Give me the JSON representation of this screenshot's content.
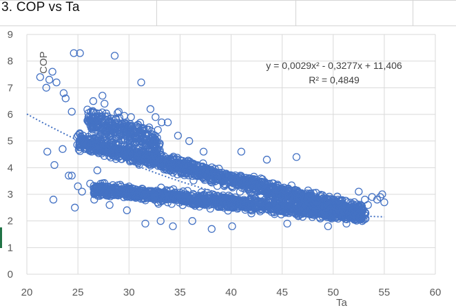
{
  "sheet": {
    "title": "3. COP vs Ta",
    "selection_color": "#217346",
    "gridline_color": "#d4d4d4"
  },
  "chart_data": {
    "type": "scatter",
    "title": "",
    "xlabel": "Ta",
    "ylabel": "COP",
    "xlim": [
      20,
      60
    ],
    "ylim": [
      0,
      9
    ],
    "x_ticks": [
      "20",
      "25",
      "30",
      "35",
      "40",
      "45",
      "50",
      "55",
      "60"
    ],
    "y_ticks": [
      "0",
      "1",
      "2",
      "3",
      "4",
      "5",
      "6",
      "7",
      "8",
      "9"
    ],
    "grid": "horizontal and vertical",
    "marker": "open-circle",
    "marker_color": "#4472c4",
    "trendline": {
      "type": "polynomial",
      "order": 2,
      "a": 0.0029,
      "b": -0.3277,
      "c": 11.406,
      "x_range": [
        20,
        55
      ],
      "color": "#4472c4",
      "style": "dotted",
      "equation": "y = 0,0029x² - 0,3277x + 11,406",
      "r_squared": "R² = 0,4849"
    },
    "series": [
      {
        "marker": "open-circle",
        "approx_point_count": 3000,
        "points": [
          [
            21.3,
            7.4
          ],
          [
            21.9,
            7.0
          ],
          [
            22.2,
            7.3
          ],
          [
            22.5,
            7.6
          ],
          [
            22.9,
            7.2
          ],
          [
            23.6,
            6.8
          ],
          [
            23.8,
            6.6
          ],
          [
            24.4,
            6.1
          ],
          [
            24.6,
            8.3
          ],
          [
            25.2,
            8.3
          ],
          [
            28.6,
            8.2
          ],
          [
            31.2,
            7.2
          ],
          [
            22.0,
            4.6
          ],
          [
            22.7,
            4.1
          ],
          [
            23.5,
            4.7
          ],
          [
            24.1,
            3.7
          ],
          [
            24.4,
            3.7
          ],
          [
            25.0,
            3.3
          ],
          [
            22.6,
            2.8
          ],
          [
            24.7,
            2.5
          ],
          [
            26.9,
            3.9
          ],
          [
            28.4,
            3.0
          ],
          [
            27.4,
            6.7
          ],
          [
            27.6,
            6.4
          ],
          [
            26.5,
            6.5
          ],
          [
            32.1,
            6.2
          ],
          [
            33.2,
            5.7
          ],
          [
            34.8,
            5.2
          ],
          [
            29.0,
            6.1
          ],
          [
            30.2,
            5.9
          ],
          [
            46.4,
            4.4
          ],
          [
            52.7,
            2.5
          ],
          [
            53.4,
            2.6
          ],
          [
            53.8,
            2.9
          ],
          [
            54.3,
            2.8
          ],
          [
            54.8,
            3.0
          ],
          [
            55.0,
            2.7
          ],
          [
            54.6,
            2.9
          ],
          [
            53.1,
            2.8
          ],
          [
            52.5,
            3.1
          ],
          [
            43.5,
            4.3
          ],
          [
            41.0,
            4.6
          ],
          [
            37.3,
            4.6
          ],
          [
            35.9,
            5.0
          ],
          [
            33.8,
            5.7
          ],
          [
            32.6,
            5.9
          ],
          [
            31.6,
            1.9
          ],
          [
            34.3,
            1.8
          ],
          [
            38.1,
            1.7
          ],
          [
            40.1,
            1.8
          ],
          [
            45.5,
            1.9
          ],
          [
            49.5,
            1.8
          ],
          [
            51.3,
            1.9
          ],
          [
            36.2,
            2.0
          ],
          [
            33.1,
            2.0
          ],
          [
            29.8,
            2.4
          ],
          [
            28.1,
            2.6
          ],
          [
            26.6,
            2.8
          ],
          [
            25.4,
            3.1
          ],
          [
            26.2,
            3.4
          ]
        ],
        "clusters": [
          {
            "x_start": 25.0,
            "x_end": 53.0,
            "y_start": 5.0,
            "y_end": 2.3,
            "spread_y": 0.28,
            "count": 1500
          },
          {
            "x_start": 26.5,
            "x_end": 53.0,
            "y_start": 3.2,
            "y_end": 2.2,
            "spread_y": 0.24,
            "count": 1300
          },
          {
            "x_start": 26.0,
            "x_end": 33.0,
            "y_start": 5.8,
            "y_end": 4.9,
            "spread_y": 0.45,
            "count": 320
          }
        ]
      }
    ]
  }
}
